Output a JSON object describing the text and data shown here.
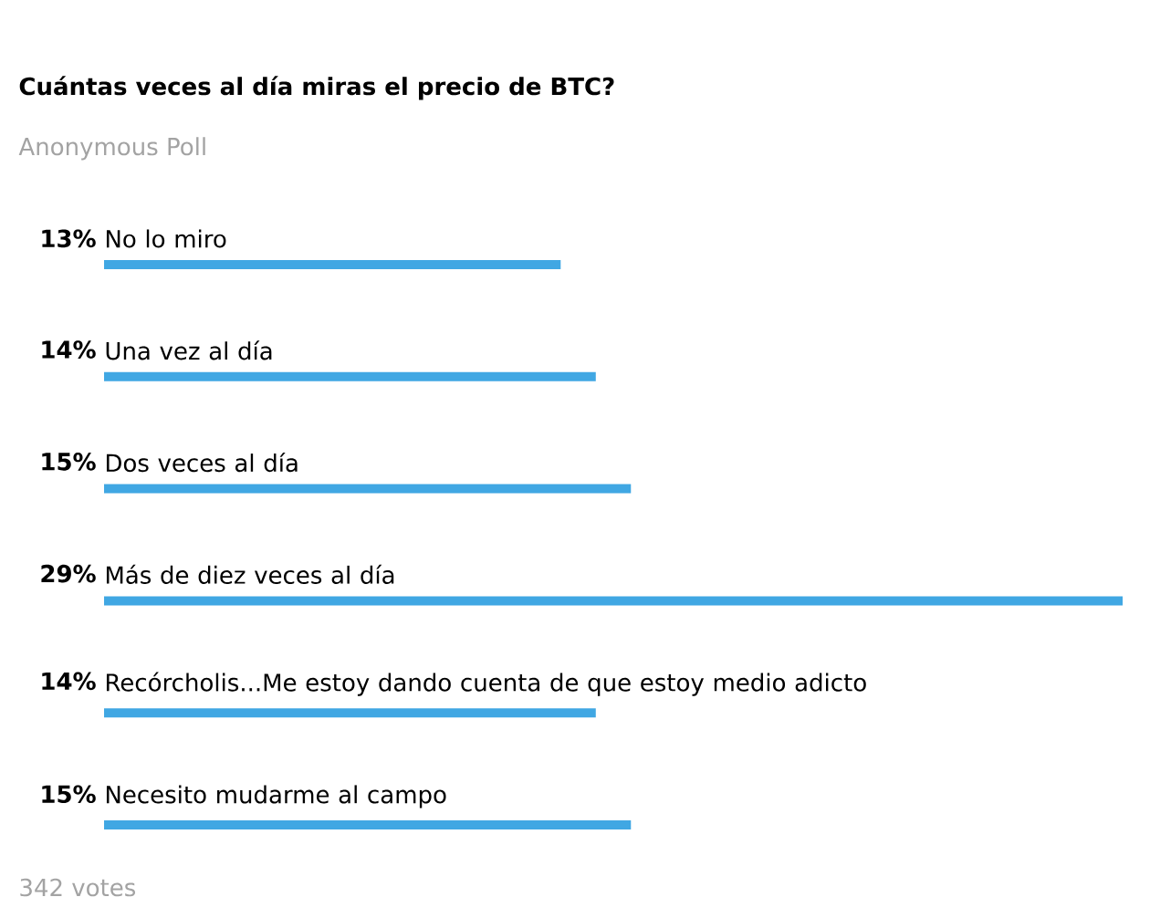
{
  "chart_data": {
    "type": "bar",
    "orientation": "horizontal",
    "title": "Cuántas veces al día miras el precio de BTC?",
    "subtitle": "Anonymous Poll",
    "annotations": [
      "342 votes"
    ],
    "categories": [
      "No lo miro",
      "Una vez al día",
      "Dos veces al día",
      "Más de diez veces al día",
      "Recórcholis...Me estoy dando cuenta de que estoy medio adicto",
      "Necesito mudarme al campo"
    ],
    "values": [
      13,
      14,
      15,
      29,
      14,
      15
    ],
    "value_labels": [
      "13%",
      "14%",
      "15%",
      "29%",
      "14%",
      "15%"
    ],
    "color": "#40a7e3"
  }
}
